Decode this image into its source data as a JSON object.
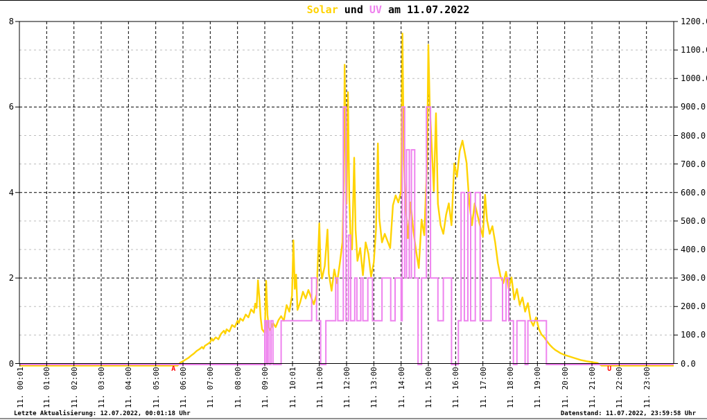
{
  "title": {
    "solar": "Solar",
    "und": " und ",
    "uv": "UV",
    "date": " am 11.07.2022"
  },
  "footer": {
    "left": "Letzte Aktualisierung: 12.07.2022, 00:01:18 Uhr",
    "right": "Datenstand: 11.07.2022, 23:59:58 Uhr"
  },
  "colors": {
    "solar": "#ffd300",
    "uv": "#ee82ee",
    "marker": "#ff0000",
    "grid_major": "#000000",
    "grid_minor": "#bcbcbc",
    "frame": "#000000"
  },
  "chart_data": {
    "type": "line",
    "title": "Solar und UV am 11.07.2022",
    "grid": true,
    "y_left": {
      "min": 0,
      "max": 8,
      "ticks": [
        0,
        2,
        4,
        6,
        8
      ],
      "series": "UV"
    },
    "y_right": {
      "min": 0,
      "max": 1200,
      "series": "Solar",
      "ticks": [
        {
          "value": 0,
          "label": "0.0"
        },
        {
          "value": 100,
          "label": "100.0"
        },
        {
          "value": 200,
          "label": "200.0"
        },
        {
          "value": 300,
          "label": "300.0"
        },
        {
          "value": 400,
          "label": "400.0"
        },
        {
          "value": 500,
          "label": "500.0"
        },
        {
          "value": 600,
          "label": "600.0"
        },
        {
          "value": 700,
          "label": "700.0"
        },
        {
          "value": 800,
          "label": "800.0"
        },
        {
          "value": 900,
          "label": "900.0"
        },
        {
          "value": 1000,
          "label": "1000.0"
        },
        {
          "value": 1100,
          "label": "1100.0"
        },
        {
          "value": 1200,
          "label": "1200.0"
        }
      ]
    },
    "x_ticks": [
      {
        "hour": 0.017,
        "label": "11. 00:01"
      },
      {
        "hour": 1,
        "label": "11. 01:00"
      },
      {
        "hour": 2,
        "label": "11. 02:00"
      },
      {
        "hour": 3,
        "label": "11. 03:00"
      },
      {
        "hour": 4,
        "label": "11. 04:00"
      },
      {
        "hour": 5,
        "label": "11. 05:00"
      },
      {
        "hour": 6,
        "label": "11. 06:00"
      },
      {
        "hour": 7,
        "label": "11. 07:00"
      },
      {
        "hour": 8,
        "label": "11. 08:00"
      },
      {
        "hour": 9,
        "label": "11. 09:00"
      },
      {
        "hour": 10.017,
        "label": "11. 10:01"
      },
      {
        "hour": 11,
        "label": "11. 11:00"
      },
      {
        "hour": 12,
        "label": "11. 12:00"
      },
      {
        "hour": 13,
        "label": "11. 13:00"
      },
      {
        "hour": 14,
        "label": "11. 14:00"
      },
      {
        "hour": 15,
        "label": "11. 15:00"
      },
      {
        "hour": 16,
        "label": "11. 16:00"
      },
      {
        "hour": 17,
        "label": "11. 17:00"
      },
      {
        "hour": 18,
        "label": "11. 18:00"
      },
      {
        "hour": 19,
        "label": "11. 19:00"
      },
      {
        "hour": 20,
        "label": "11. 20:00"
      },
      {
        "hour": 21,
        "label": "11. 21:00"
      },
      {
        "hour": 22,
        "label": "11. 22:00"
      },
      {
        "hour": 23,
        "label": "11. 23:00"
      }
    ],
    "markers": [
      {
        "id": "sunrise",
        "label": "A",
        "hour": 5.65
      },
      {
        "id": "sunset",
        "label": "U",
        "hour": 21.64
      }
    ],
    "series": [
      {
        "name": "Solar",
        "axis": "right",
        "style": "line",
        "points": [
          [
            0,
            0
          ],
          [
            5.8,
            0
          ],
          [
            5.9,
            3
          ],
          [
            6.0,
            8
          ],
          [
            6.1,
            14
          ],
          [
            6.2,
            20
          ],
          [
            6.3,
            28
          ],
          [
            6.4,
            35
          ],
          [
            6.5,
            44
          ],
          [
            6.6,
            50
          ],
          [
            6.7,
            58
          ],
          [
            6.75,
            52
          ],
          [
            6.8,
            62
          ],
          [
            6.9,
            68
          ],
          [
            7.0,
            75
          ],
          [
            7.05,
            88
          ],
          [
            7.1,
            80
          ],
          [
            7.2,
            92
          ],
          [
            7.3,
            85
          ],
          [
            7.4,
            105
          ],
          [
            7.5,
            115
          ],
          [
            7.55,
            105
          ],
          [
            7.6,
            120
          ],
          [
            7.7,
            112
          ],
          [
            7.8,
            135
          ],
          [
            7.9,
            128
          ],
          [
            8.0,
            150
          ],
          [
            8.05,
            142
          ],
          [
            8.1,
            158
          ],
          [
            8.2,
            150
          ],
          [
            8.3,
            172
          ],
          [
            8.4,
            162
          ],
          [
            8.5,
            190
          ],
          [
            8.6,
            178
          ],
          [
            8.65,
            210
          ],
          [
            8.7,
            195
          ],
          [
            8.75,
            292
          ],
          [
            8.8,
            235
          ],
          [
            8.85,
            160
          ],
          [
            8.9,
            120
          ],
          [
            9.0,
            108
          ],
          [
            9.05,
            290
          ],
          [
            9.1,
            170
          ],
          [
            9.15,
            125
          ],
          [
            9.2,
            118
          ],
          [
            9.3,
            142
          ],
          [
            9.4,
            128
          ],
          [
            9.5,
            152
          ],
          [
            9.6,
            166
          ],
          [
            9.7,
            150
          ],
          [
            9.8,
            205
          ],
          [
            9.9,
            182
          ],
          [
            10.0,
            238
          ],
          [
            10.05,
            432
          ],
          [
            10.1,
            262
          ],
          [
            10.15,
            312
          ],
          [
            10.2,
            188
          ],
          [
            10.3,
            215
          ],
          [
            10.4,
            252
          ],
          [
            10.5,
            228
          ],
          [
            10.6,
            258
          ],
          [
            10.7,
            232
          ],
          [
            10.8,
            208
          ],
          [
            10.9,
            242
          ],
          [
            11.0,
            492
          ],
          [
            11.05,
            335
          ],
          [
            11.1,
            298
          ],
          [
            11.2,
            342
          ],
          [
            11.3,
            470
          ],
          [
            11.35,
            315
          ],
          [
            11.45,
            255
          ],
          [
            11.55,
            330
          ],
          [
            11.65,
            282
          ],
          [
            11.75,
            350
          ],
          [
            11.85,
            425
          ],
          [
            11.9,
            640
          ],
          [
            11.93,
            1048
          ],
          [
            11.97,
            760
          ],
          [
            12.0,
            560
          ],
          [
            12.05,
            952
          ],
          [
            12.1,
            585
          ],
          [
            12.15,
            430
          ],
          [
            12.2,
            400
          ],
          [
            12.28,
            722
          ],
          [
            12.33,
            470
          ],
          [
            12.4,
            360
          ],
          [
            12.5,
            405
          ],
          [
            12.6,
            310
          ],
          [
            12.7,
            425
          ],
          [
            12.8,
            385
          ],
          [
            12.9,
            305
          ],
          [
            13.0,
            355
          ],
          [
            13.08,
            470
          ],
          [
            13.15,
            772
          ],
          [
            13.2,
            510
          ],
          [
            13.3,
            425
          ],
          [
            13.4,
            455
          ],
          [
            13.5,
            430
          ],
          [
            13.6,
            405
          ],
          [
            13.7,
            555
          ],
          [
            13.8,
            590
          ],
          [
            13.9,
            565
          ],
          [
            14.0,
            605
          ],
          [
            14.05,
            1158
          ],
          [
            14.1,
            725
          ],
          [
            14.15,
            580
          ],
          [
            14.25,
            440
          ],
          [
            14.35,
            565
          ],
          [
            14.45,
            465
          ],
          [
            14.55,
            395
          ],
          [
            14.65,
            335
          ],
          [
            14.75,
            505
          ],
          [
            14.85,
            450
          ],
          [
            14.95,
            700
          ],
          [
            15.0,
            1118
          ],
          [
            15.05,
            905
          ],
          [
            15.1,
            812
          ],
          [
            15.2,
            605
          ],
          [
            15.28,
            878
          ],
          [
            15.35,
            560
          ],
          [
            15.45,
            485
          ],
          [
            15.55,
            455
          ],
          [
            15.65,
            522
          ],
          [
            15.75,
            562
          ],
          [
            15.85,
            485
          ],
          [
            15.95,
            702
          ],
          [
            16.05,
            655
          ],
          [
            16.15,
            745
          ],
          [
            16.25,
            782
          ],
          [
            16.32,
            748
          ],
          [
            16.4,
            705
          ],
          [
            16.5,
            565
          ],
          [
            16.6,
            485
          ],
          [
            16.7,
            562
          ],
          [
            16.8,
            522
          ],
          [
            16.9,
            482
          ],
          [
            17.0,
            445
          ],
          [
            17.08,
            592
          ],
          [
            17.15,
            505
          ],
          [
            17.25,
            455
          ],
          [
            17.35,
            482
          ],
          [
            17.45,
            425
          ],
          [
            17.55,
            352
          ],
          [
            17.65,
            305
          ],
          [
            17.75,
            282
          ],
          [
            17.85,
            322
          ],
          [
            17.95,
            262
          ],
          [
            18.05,
            302
          ],
          [
            18.15,
            225
          ],
          [
            18.25,
            262
          ],
          [
            18.35,
            205
          ],
          [
            18.45,
            232
          ],
          [
            18.55,
            182
          ],
          [
            18.65,
            212
          ],
          [
            18.75,
            152
          ],
          [
            18.85,
            132
          ],
          [
            18.95,
            162
          ],
          [
            19.05,
            122
          ],
          [
            19.15,
            102
          ],
          [
            19.25,
            92
          ],
          [
            19.35,
            78
          ],
          [
            19.45,
            66
          ],
          [
            19.55,
            56
          ],
          [
            19.65,
            48
          ],
          [
            19.75,
            42
          ],
          [
            19.85,
            36
          ],
          [
            20.0,
            30
          ],
          [
            20.2,
            24
          ],
          [
            20.4,
            18
          ],
          [
            20.6,
            12
          ],
          [
            20.8,
            8
          ],
          [
            21.0,
            5
          ],
          [
            21.2,
            2
          ],
          [
            21.35,
            0
          ],
          [
            24,
            0
          ]
        ]
      },
      {
        "name": "UV",
        "axis": "left",
        "style": "step",
        "points": [
          [
            0,
            0
          ],
          [
            9.0,
            1
          ],
          [
            9.06,
            0
          ],
          [
            9.1,
            1
          ],
          [
            9.16,
            0
          ],
          [
            9.23,
            1
          ],
          [
            9.3,
            0
          ],
          [
            9.6,
            1
          ],
          [
            10.72,
            2
          ],
          [
            10.9,
            1
          ],
          [
            11.05,
            0
          ],
          [
            11.24,
            1
          ],
          [
            11.6,
            2
          ],
          [
            11.68,
            1
          ],
          [
            11.88,
            6
          ],
          [
            11.98,
            1
          ],
          [
            12.07,
            3
          ],
          [
            12.15,
            1
          ],
          [
            12.3,
            2
          ],
          [
            12.38,
            1
          ],
          [
            12.52,
            2
          ],
          [
            12.6,
            1
          ],
          [
            12.78,
            2
          ],
          [
            12.95,
            1
          ],
          [
            13.3,
            2
          ],
          [
            13.62,
            1
          ],
          [
            13.78,
            2
          ],
          [
            14.0,
            1
          ],
          [
            14.04,
            6
          ],
          [
            14.13,
            2
          ],
          [
            14.2,
            5
          ],
          [
            14.3,
            2
          ],
          [
            14.38,
            5
          ],
          [
            14.5,
            2
          ],
          [
            14.62,
            0
          ],
          [
            14.75,
            2
          ],
          [
            14.93,
            6
          ],
          [
            15.08,
            2
          ],
          [
            15.35,
            1
          ],
          [
            15.55,
            2
          ],
          [
            15.85,
            0
          ],
          [
            16.1,
            1
          ],
          [
            16.2,
            4
          ],
          [
            16.32,
            1
          ],
          [
            16.45,
            4
          ],
          [
            16.55,
            1
          ],
          [
            16.72,
            4
          ],
          [
            16.9,
            1
          ],
          [
            17.3,
            2
          ],
          [
            17.72,
            1
          ],
          [
            17.85,
            2
          ],
          [
            17.95,
            1
          ],
          [
            18.12,
            0
          ],
          [
            18.25,
            1
          ],
          [
            18.55,
            0
          ],
          [
            18.65,
            1
          ],
          [
            19.33,
            0
          ]
        ]
      }
    ]
  }
}
